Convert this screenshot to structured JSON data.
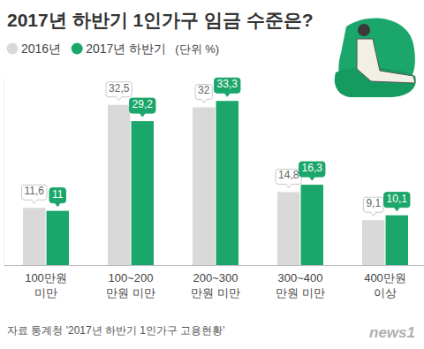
{
  "chart_data": {
    "type": "bar",
    "title": "2017년 하반기 1인가구 임금 수준은?",
    "subtitle": "(단위 %)",
    "categories": [
      "100만원\n미만",
      "100~200\n만원 미만",
      "200~300\n만원 미만",
      "300~400\n만원 미만",
      "400만원\n이상"
    ],
    "series": [
      {
        "name": "2016년",
        "color": "#d9d9d9",
        "values": [
          11.6,
          32.5,
          32,
          14.8,
          9.1
        ],
        "value_labels": [
          "11,6",
          "32,5",
          "32",
          "14,8",
          "9,1"
        ]
      },
      {
        "name": "2017년 하반기",
        "color": "#1ba66b",
        "values": [
          11,
          29.2,
          33.3,
          16.3,
          10.1
        ],
        "value_labels": [
          "11",
          "29,2",
          "33,3",
          "16,3",
          "10,1"
        ]
      }
    ],
    "ylim": [
      0,
      38
    ],
    "yticks": [],
    "grid": false,
    "legend": "top-left",
    "data_labels": true,
    "tick_labels": "x",
    "source": "자료 통계청 '2017년 하반기 1인가구 고용현황'",
    "annotations": [
      "news1"
    ]
  }
}
